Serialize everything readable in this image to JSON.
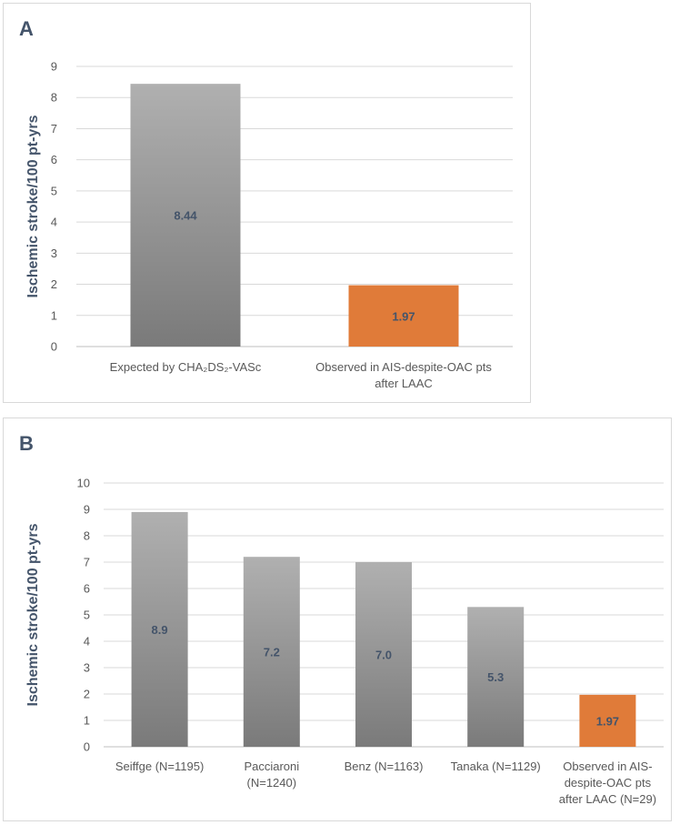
{
  "panels": {
    "a": {
      "letter": "A"
    },
    "b": {
      "letter": "B"
    }
  },
  "chart_data": [
    {
      "id": "A",
      "type": "bar",
      "title": "",
      "xlabel": "",
      "ylabel": "Ischemic stroke/100 pt-yrs",
      "ylim": [
        0,
        9
      ],
      "yticks": [
        0,
        1,
        2,
        3,
        4,
        5,
        6,
        7,
        8,
        9
      ],
      "grid": true,
      "legend": "none",
      "categories": [
        [
          "Expected by CHA₂DS₂-VASc"
        ],
        [
          "Observed in AIS-despite-OAC pts",
          "after LAAC"
        ]
      ],
      "values": [
        8.44,
        1.97
      ],
      "data_labels": [
        "8.44",
        "1.97"
      ],
      "colors": [
        "gray",
        "#e07b39"
      ]
    },
    {
      "id": "B",
      "type": "bar",
      "title": "",
      "xlabel": "",
      "ylabel": "Ischemic stroke/100 pt-yrs",
      "ylim": [
        0,
        10
      ],
      "yticks": [
        0,
        1,
        2,
        3,
        4,
        5,
        6,
        7,
        8,
        9,
        10
      ],
      "grid": true,
      "legend": "none",
      "categories": [
        [
          "Seiffge (N=1195)"
        ],
        [
          "Pacciaroni",
          "(N=1240)"
        ],
        [
          "Benz (N=1163)"
        ],
        [
          "Tanaka (N=1129)"
        ],
        [
          "Observed in AIS-",
          "despite-OAC pts",
          "after LAAC (N=29)"
        ]
      ],
      "values": [
        8.9,
        7.2,
        7.0,
        5.3,
        1.97
      ],
      "data_labels": [
        "8.9",
        "7.2",
        "7.0",
        "5.3",
        "1.97"
      ],
      "colors": [
        "gray",
        "gray",
        "gray",
        "gray",
        "#e07b39"
      ]
    }
  ]
}
